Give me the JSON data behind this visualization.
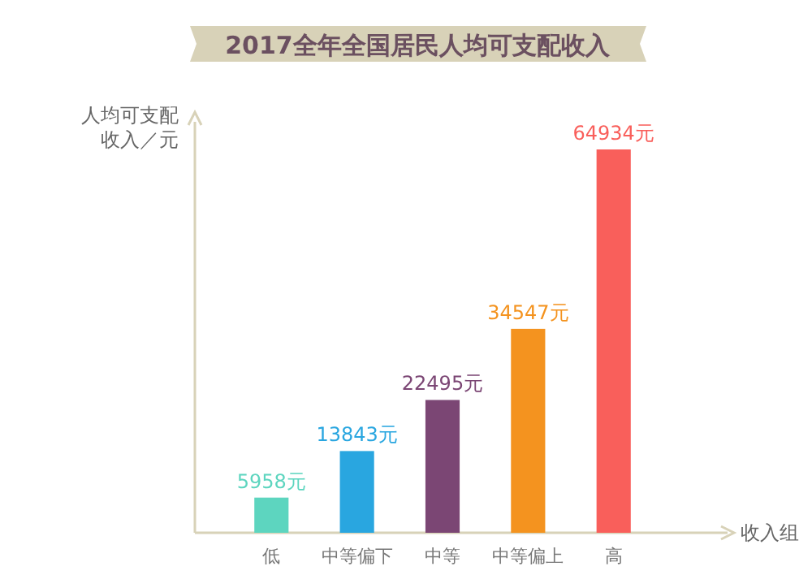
{
  "chart_data": {
    "type": "bar",
    "title": "2017全年全国居民人均可支配收入",
    "ylabel": "人均可支配收入／元",
    "xlabel": "收入组",
    "categories": [
      "低",
      "中等偏下",
      "中等",
      "中等偏上",
      "高"
    ],
    "values": [
      5958,
      13843,
      22495,
      34547,
      64934
    ],
    "colors": [
      "#5dd5bf",
      "#29a6e0",
      "#7b4674",
      "#f4931f",
      "#f95f5b"
    ],
    "value_labels": [
      "5958元",
      "13843元",
      "22495元",
      "34547元",
      "64934元"
    ]
  }
}
